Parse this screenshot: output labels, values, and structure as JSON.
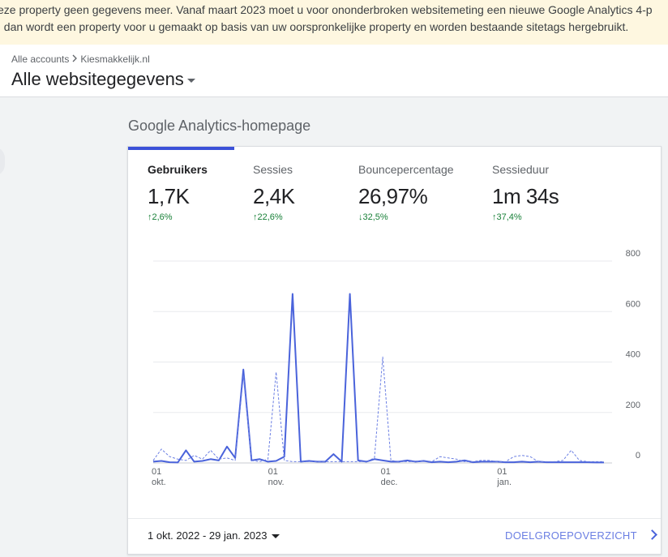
{
  "banner": {
    "line1": "eze property geen gegevens meer. Vanaf maart 2023 moet u voor ononderbroken websitemeting een nieuwe Google Analytics 4-p",
    "line2": ", dan wordt een property voor u gemaakt op basis van uw oorspronkelijke property en worden bestaande sitetags hergebruikt."
  },
  "breadcrumb": {
    "account": "Alle accounts",
    "property": "Kiesmakkelijk.nl"
  },
  "view_title": "Alle websitegegevens",
  "section_title": "Google Analytics-homepage",
  "metrics": [
    {
      "label": "Gebruikers",
      "value": "1,7K",
      "change": "2,6%",
      "direction": "up"
    },
    {
      "label": "Sessies",
      "value": "2,4K",
      "change": "22,6%",
      "direction": "up"
    },
    {
      "label": "Bouncepercentage",
      "value": "26,97%",
      "change": "32,5%",
      "direction": "down"
    },
    {
      "label": "Sessieduur",
      "value": "1m 34s",
      "change": "37,4%",
      "direction": "up"
    }
  ],
  "colors": {
    "accent": "#3b51d8",
    "positive": "#188038",
    "banner_bg": "#fef7e0"
  },
  "footer": {
    "date_range": "1 okt. 2022 - 29 jan. 2023",
    "link": "DOELGROEPOVERZICHT"
  },
  "chart_data": {
    "type": "line",
    "x_start": "2022-10-01",
    "x_end": "2023-01-29",
    "x_tick_labels": [
      {
        "day": "01",
        "month": "okt.",
        "date": "2022-10-01"
      },
      {
        "day": "01",
        "month": "nov.",
        "date": "2022-11-01"
      },
      {
        "day": "01",
        "month": "dec.",
        "date": "2022-12-01"
      },
      {
        "day": "01",
        "month": "jan.",
        "date": "2023-01-01"
      }
    ],
    "y_ticks": [
      0,
      200,
      400,
      600,
      800
    ],
    "ylim": [
      0,
      800
    ],
    "series": [
      {
        "values": [
          5,
          8,
          3,
          2,
          50,
          5,
          8,
          15,
          10,
          65,
          20,
          370,
          10,
          15,
          5,
          8,
          25,
          670,
          5,
          8,
          5,
          5,
          35,
          5,
          670,
          10,
          5,
          15,
          10,
          5,
          5,
          10,
          5,
          8,
          3,
          5,
          3,
          5,
          10,
          3,
          5,
          5,
          5,
          3,
          3,
          5,
          3,
          5,
          3,
          3,
          3,
          3,
          3,
          3,
          2,
          2
        ]
      },
      {
        "values": [
          10,
          55,
          25,
          15,
          10,
          30,
          15,
          50,
          15,
          20,
          10,
          345,
          10,
          5,
          15,
          360,
          10,
          5,
          5,
          5,
          5,
          5,
          5,
          5,
          5,
          5,
          5,
          20,
          420,
          10,
          5,
          5,
          5,
          10,
          5,
          25,
          20,
          15,
          5,
          5,
          10,
          10,
          5,
          5,
          25,
          30,
          25,
          5,
          5,
          5,
          10,
          50,
          10,
          5,
          5,
          5
        ],
        "style": "dashed"
      }
    ]
  }
}
